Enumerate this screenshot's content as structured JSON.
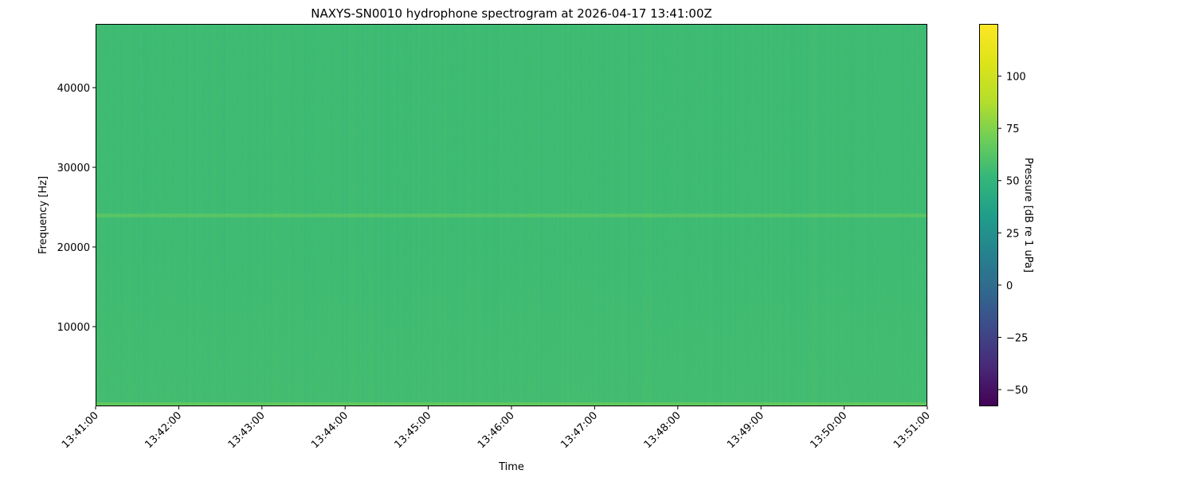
{
  "chart_data": {
    "type": "heatmap",
    "title": "NAXYS-SN0010 hydrophone spectrogram at 2026-04-17 13:41:00Z",
    "xlabel": "Time",
    "ylabel": "Frequency [Hz]",
    "x_ticks": [
      "13:41:00",
      "13:42:00",
      "13:43:00",
      "13:44:00",
      "13:45:00",
      "13:46:00",
      "13:47:00",
      "13:48:00",
      "13:49:00",
      "13:50:00",
      "13:51:00"
    ],
    "xlim": [
      "13:41:00",
      "13:51:00"
    ],
    "y_ticks": [
      10000,
      20000,
      30000,
      40000
    ],
    "ylim": [
      0,
      48000
    ],
    "colorbar": {
      "label": "Pressure [dB re 1 uPa]",
      "colormap": "viridis",
      "ticks": [
        -50,
        -25,
        0,
        25,
        50,
        75,
        100
      ],
      "range": [
        -58,
        125
      ]
    },
    "levels": {
      "background_db": 55,
      "tonal_band": {
        "frequency_hz": 24000,
        "level_db": 64
      },
      "low_frequency_band": {
        "frequency_hz": [
          0,
          500
        ],
        "level_db": 66
      }
    },
    "grid": false
  }
}
